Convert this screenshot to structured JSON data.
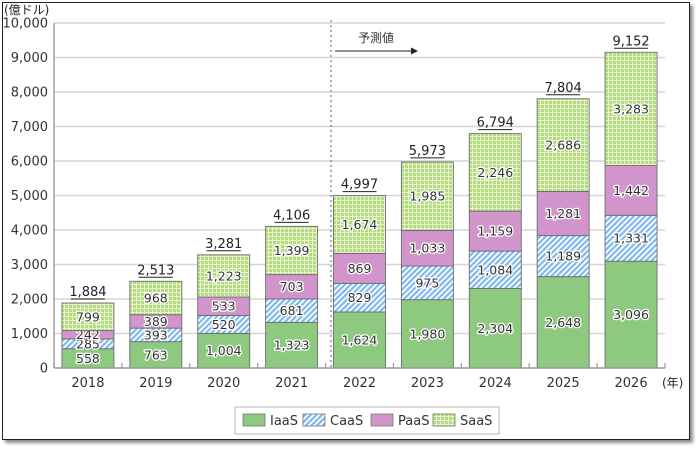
{
  "chart_data": {
    "type": "bar",
    "stacked": true,
    "title": "",
    "ylabel": "(億ドル)",
    "xlabel": "(年)",
    "ylim": [
      0,
      10000
    ],
    "yticks": [
      0,
      1000,
      2000,
      3000,
      4000,
      5000,
      6000,
      7000,
      8000,
      9000,
      10000
    ],
    "ytick_labels": [
      "0",
      "1,000",
      "2,000",
      "3,000",
      "4,000",
      "5,000",
      "6,000",
      "7,000",
      "8,000",
      "9,000",
      "10,000"
    ],
    "grid": true,
    "categories": [
      "2018",
      "2019",
      "2020",
      "2021",
      "2022",
      "2023",
      "2024",
      "2025",
      "2026"
    ],
    "series": [
      {
        "name": "IaaS",
        "values": [
          558,
          763,
          1004,
          1323,
          1624,
          1980,
          2304,
          2648,
          3096
        ],
        "labels": [
          "558",
          "763",
          "1,004",
          "1,323",
          "1,624",
          "1,980",
          "2,304",
          "2,648",
          "3,096"
        ],
        "color": "#8dc97f",
        "pattern": "solid"
      },
      {
        "name": "CaaS",
        "values": [
          285,
          393,
          520,
          681,
          829,
          975,
          1084,
          1189,
          1331
        ],
        "labels": [
          "285",
          "393",
          "520",
          "681",
          "829",
          "975",
          "1,084",
          "1,189",
          "1,331"
        ],
        "color": "#8fc3ef",
        "pattern": "diagonal-hatch"
      },
      {
        "name": "PaaS",
        "values": [
          242,
          389,
          533,
          703,
          869,
          1033,
          1159,
          1281,
          1442
        ],
        "labels": [
          "242",
          "389",
          "533",
          "703",
          "869",
          "1,033",
          "1,159",
          "1,281",
          "1,442"
        ],
        "color": "#d195cb",
        "pattern": "solid"
      },
      {
        "name": "SaaS",
        "values": [
          799,
          968,
          1223,
          1399,
          1674,
          1985,
          2246,
          2686,
          3283
        ],
        "labels": [
          "799",
          "968",
          "1,223",
          "1,399",
          "1,674",
          "1,985",
          "2,246",
          "2,686",
          "3,283"
        ],
        "color": "#b6df85",
        "pattern": "grid"
      }
    ],
    "totals": [
      1884,
      2513,
      3281,
      4106,
      4997,
      5973,
      6794,
      7804,
      9152
    ],
    "total_labels": [
      "1,884",
      "2,513",
      "3,281",
      "4,106",
      "4,997",
      "5,973",
      "6,794",
      "7,804",
      "9,152"
    ],
    "annotations": [
      {
        "text": "予測値",
        "type": "arrow-right",
        "from_category": "2022",
        "note": "forecast from 2022 onward, dotted divider between 2021 and 2022"
      }
    ],
    "legend": {
      "position": "bottom-center",
      "entries": [
        "IaaS",
        "CaaS",
        "PaaS",
        "SaaS"
      ]
    }
  }
}
